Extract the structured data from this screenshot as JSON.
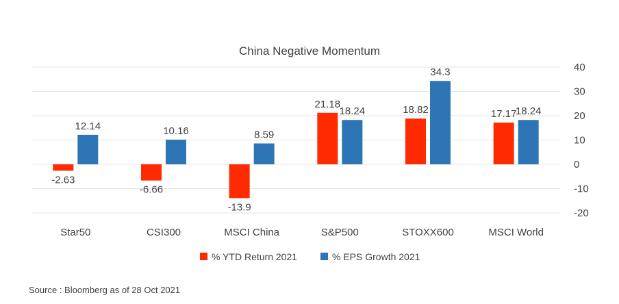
{
  "chart_data": {
    "type": "bar",
    "title": "China Negative Momentum",
    "categories": [
      "Star50",
      "CSI300",
      "MSCI China",
      "S&P500",
      "STOXX600",
      "MSCI World"
    ],
    "series": [
      {
        "name": "% YTD Return 2021",
        "color": "#ff2a00",
        "values": [
          -2.63,
          -6.66,
          -13.9,
          21.18,
          18.82,
          17.17
        ],
        "labels": [
          "-2.63",
          "-6.66",
          "-13.9",
          "21.18",
          "18.82",
          "17.17"
        ]
      },
      {
        "name": "% EPS Growth 2021",
        "color": "#2e75b6",
        "values": [
          12.14,
          10.16,
          8.59,
          18.24,
          34.3,
          18.24
        ],
        "labels": [
          "12.14",
          "10.16",
          "8.59",
          "18.24",
          "34.3",
          "18.24"
        ]
      }
    ],
    "ylim": [
      -20,
      40
    ],
    "yticks": [
      "40",
      "30",
      "20",
      "10",
      "0",
      "-10",
      "-20"
    ],
    "ytick_values": [
      40,
      30,
      20,
      10,
      0,
      -10,
      -20
    ],
    "y_axis_position": "right",
    "grid": true,
    "legend_position": "bottom-center"
  },
  "source": "Source : Bloomberg as of 28 Oct 2021"
}
